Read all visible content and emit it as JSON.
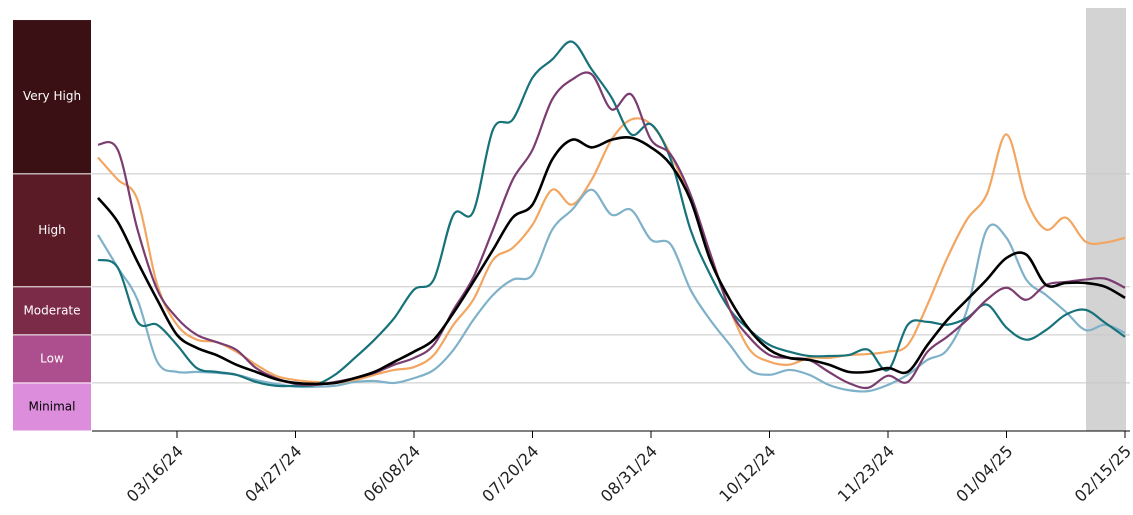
{
  "chart_data": {
    "type": "line",
    "x": [
      "02/17/24",
      "02/24/24",
      "03/02/24",
      "03/09/24",
      "03/16/24",
      "03/23/24",
      "03/30/24",
      "04/06/24",
      "04/13/24",
      "04/20/24",
      "04/27/24",
      "05/04/24",
      "05/11/24",
      "05/18/24",
      "05/25/24",
      "06/01/24",
      "06/08/24",
      "06/15/24",
      "06/22/24",
      "06/29/24",
      "07/06/24",
      "07/13/24",
      "07/20/24",
      "07/27/24",
      "08/03/24",
      "08/10/24",
      "08/17/24",
      "08/24/24",
      "08/31/24",
      "09/07/24",
      "09/14/24",
      "09/21/24",
      "09/28/24",
      "10/05/24",
      "10/12/24",
      "10/19/24",
      "10/26/24",
      "11/02/24",
      "11/09/24",
      "11/16/24",
      "11/23/24",
      "11/30/24",
      "12/07/24",
      "12/14/24",
      "12/21/24",
      "12/28/24",
      "01/04/25",
      "01/11/25",
      "01/18/25",
      "01/25/25",
      "02/01/25",
      "02/08/25",
      "02/15/25"
    ],
    "xticks": [
      "03/16/24",
      "04/27/24",
      "06/08/24",
      "07/20/24",
      "08/31/24",
      "10/12/24",
      "11/23/24",
      "01/04/25",
      "02/15/25"
    ],
    "ylim": [
      0,
      8.8
    ],
    "levels": [
      {
        "label": "Minimal",
        "from": 0,
        "to": 1,
        "color": "#dc8edc",
        "text_color": "#000000"
      },
      {
        "label": "Low",
        "from": 1,
        "to": 2,
        "color": "#ad4f8e",
        "text_color": "#ffffff"
      },
      {
        "label": "Moderate",
        "from": 2,
        "to": 3,
        "color": "#7b2a47",
        "text_color": "#ffffff"
      },
      {
        "label": "High",
        "from": 3,
        "to": 5.35,
        "color": "#5a1a26",
        "text_color": "#ffffff"
      },
      {
        "label": "Very High",
        "from": 5.35,
        "to": 8.56,
        "color": "#3a1014",
        "text_color": "#ffffff"
      }
    ],
    "series": [
      {
        "color": "#f2a661",
        "values": [
          5.69,
          5.23,
          4.81,
          3.04,
          2.21,
          1.9,
          1.85,
          1.65,
          1.38,
          1.15,
          1.06,
          1.02,
          1.0,
          1.06,
          1.17,
          1.27,
          1.33,
          1.58,
          2.21,
          2.73,
          3.56,
          3.81,
          4.29,
          5.02,
          4.71,
          5.23,
          6.06,
          6.48,
          6.38,
          5.75,
          4.81,
          3.69,
          2.52,
          1.69,
          1.44,
          1.38,
          1.52,
          1.52,
          1.58,
          1.6,
          1.65,
          1.79,
          2.63,
          3.6,
          4.4,
          4.92,
          6.17,
          4.81,
          4.19,
          4.44,
          3.94,
          3.92,
          4.02
        ]
      },
      {
        "color": "#7fb1c9",
        "values": [
          4.08,
          3.4,
          2.73,
          1.44,
          1.23,
          1.23,
          1.21,
          1.17,
          1.06,
          0.98,
          0.92,
          0.92,
          0.94,
          1.02,
          1.04,
          1.0,
          1.1,
          1.27,
          1.69,
          2.31,
          2.83,
          3.15,
          3.25,
          4.19,
          4.6,
          5.02,
          4.5,
          4.6,
          3.98,
          3.88,
          2.94,
          2.31,
          1.79,
          1.27,
          1.17,
          1.27,
          1.17,
          0.96,
          0.85,
          0.83,
          0.96,
          1.17,
          1.48,
          1.69,
          2.52,
          4.19,
          4.02,
          3.15,
          2.83,
          2.48,
          2.1,
          2.21,
          2.04
        ]
      },
      {
        "color": "#17727a",
        "values": [
          3.56,
          3.4,
          2.27,
          2.21,
          1.79,
          1.31,
          1.23,
          1.17,
          1.02,
          0.94,
          0.94,
          0.96,
          1.17,
          1.52,
          1.9,
          2.35,
          2.94,
          3.15,
          4.5,
          4.56,
          6.27,
          6.48,
          7.35,
          7.73,
          8.1,
          7.52,
          6.94,
          6.17,
          6.38,
          5.65,
          4.19,
          3.25,
          2.52,
          2.1,
          1.79,
          1.65,
          1.56,
          1.56,
          1.58,
          1.69,
          1.27,
          2.21,
          2.27,
          2.21,
          2.35,
          2.63,
          2.15,
          1.9,
          2.1,
          2.42,
          2.52,
          2.25,
          1.96
        ]
      },
      {
        "color": "#7b3d70",
        "values": [
          5.96,
          5.85,
          4.19,
          2.94,
          2.35,
          2.0,
          1.85,
          1.69,
          1.31,
          1.1,
          0.98,
          0.96,
          1.02,
          1.1,
          1.21,
          1.38,
          1.52,
          1.79,
          2.52,
          3.19,
          4.19,
          5.23,
          5.85,
          6.9,
          7.31,
          7.42,
          6.69,
          7.0,
          6.06,
          5.75,
          4.92,
          3.69,
          2.52,
          1.94,
          1.58,
          1.52,
          1.48,
          1.23,
          1.0,
          0.9,
          1.15,
          1.02,
          1.65,
          1.96,
          2.31,
          2.73,
          2.98,
          2.73,
          3.04,
          3.1,
          3.15,
          3.17,
          2.98
        ]
      },
      {
        "color": "#000000",
        "values": [
          4.85,
          4.35,
          3.52,
          2.73,
          2.0,
          1.73,
          1.58,
          1.38,
          1.23,
          1.08,
          1.0,
          0.98,
          1.0,
          1.1,
          1.23,
          1.44,
          1.65,
          1.9,
          2.46,
          3.1,
          3.77,
          4.44,
          4.71,
          5.65,
          6.06,
          5.9,
          6.06,
          6.1,
          5.9,
          5.54,
          4.81,
          3.56,
          2.73,
          2.1,
          1.69,
          1.52,
          1.48,
          1.38,
          1.23,
          1.23,
          1.31,
          1.23,
          1.79,
          2.31,
          2.73,
          3.15,
          3.6,
          3.67,
          3.04,
          3.08,
          3.08,
          3.0,
          2.77
        ]
      }
    ]
  }
}
